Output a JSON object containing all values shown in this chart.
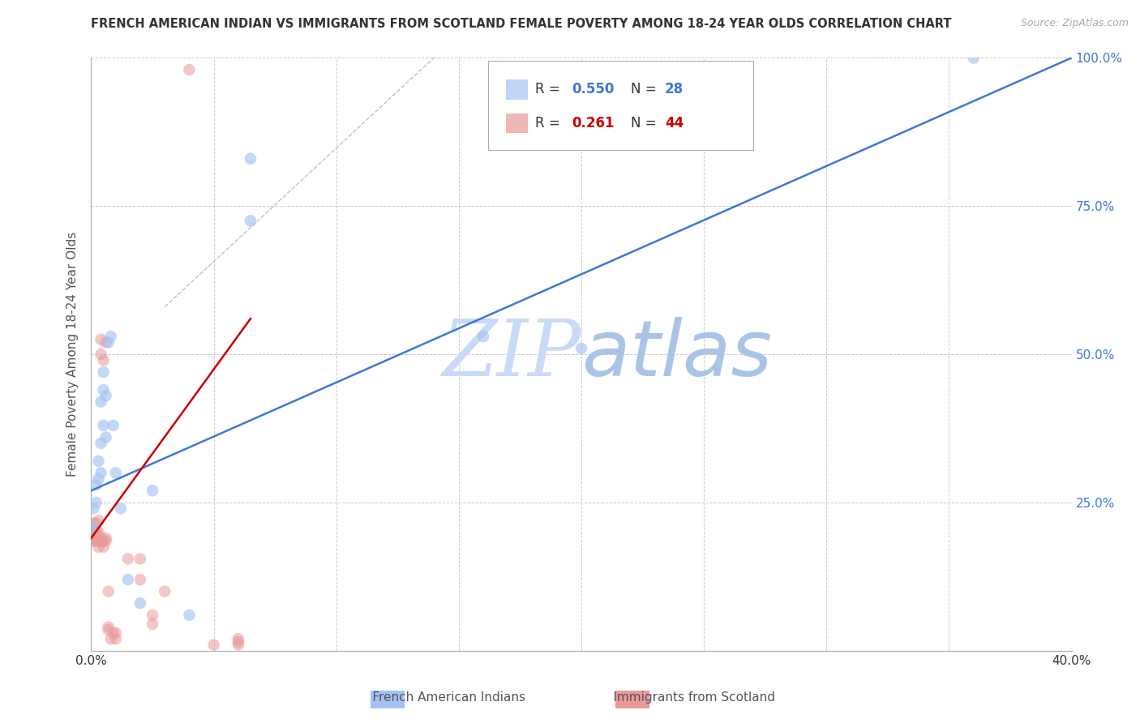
{
  "title": "FRENCH AMERICAN INDIAN VS IMMIGRANTS FROM SCOTLAND FEMALE POVERTY AMONG 18-24 YEAR OLDS CORRELATION CHART",
  "source": "Source: ZipAtlas.com",
  "ylabel": "Female Poverty Among 18-24 Year Olds",
  "xlim": [
    0.0,
    0.4
  ],
  "ylim": [
    0.0,
    1.0
  ],
  "xticks": [
    0.0,
    0.05,
    0.1,
    0.15,
    0.2,
    0.25,
    0.3,
    0.35,
    0.4
  ],
  "xticklabels": [
    "0.0%",
    "",
    "",
    "",
    "",
    "",
    "",
    "",
    "40.0%"
  ],
  "ytick_positions": [
    0.0,
    0.25,
    0.5,
    0.75,
    1.0
  ],
  "yticklabels_right": [
    "",
    "25.0%",
    "50.0%",
    "75.0%",
    "100.0%"
  ],
  "blue_color": "#a4c2f4",
  "pink_color": "#ea9999",
  "blue_line_color": "#3c78d8",
  "pink_line_color": "#cc0000",
  "grid_color": "#cccccc",
  "watermark_color": "#c9daf8",
  "legend_R_blue": "0.550",
  "legend_N_blue": "28",
  "legend_R_pink": "0.261",
  "legend_N_pink": "44",
  "blue_scatter_x": [
    0.001,
    0.001,
    0.002,
    0.002,
    0.003,
    0.003,
    0.004,
    0.004,
    0.004,
    0.005,
    0.005,
    0.005,
    0.006,
    0.006,
    0.007,
    0.008,
    0.009,
    0.01,
    0.012,
    0.015,
    0.02,
    0.025,
    0.04,
    0.065,
    0.065,
    0.16,
    0.2,
    0.36
  ],
  "blue_scatter_y": [
    0.21,
    0.24,
    0.25,
    0.28,
    0.29,
    0.32,
    0.3,
    0.35,
    0.42,
    0.38,
    0.44,
    0.47,
    0.36,
    0.43,
    0.52,
    0.53,
    0.38,
    0.3,
    0.24,
    0.12,
    0.08,
    0.27,
    0.06,
    0.83,
    0.725,
    0.53,
    0.51,
    1.0
  ],
  "pink_scatter_x": [
    0.001,
    0.001,
    0.001,
    0.001,
    0.001,
    0.001,
    0.002,
    0.002,
    0.002,
    0.002,
    0.002,
    0.003,
    0.003,
    0.003,
    0.003,
    0.003,
    0.004,
    0.004,
    0.004,
    0.004,
    0.005,
    0.005,
    0.005,
    0.006,
    0.006,
    0.006,
    0.007,
    0.007,
    0.007,
    0.008,
    0.009,
    0.01,
    0.01,
    0.015,
    0.02,
    0.02,
    0.025,
    0.025,
    0.03,
    0.04,
    0.05,
    0.06,
    0.06,
    0.06
  ],
  "pink_scatter_y": [
    0.185,
    0.19,
    0.195,
    0.2,
    0.21,
    0.215,
    0.185,
    0.19,
    0.2,
    0.205,
    0.215,
    0.175,
    0.185,
    0.19,
    0.2,
    0.22,
    0.185,
    0.19,
    0.5,
    0.525,
    0.175,
    0.185,
    0.49,
    0.185,
    0.19,
    0.52,
    0.035,
    0.04,
    0.1,
    0.02,
    0.03,
    0.02,
    0.03,
    0.155,
    0.155,
    0.12,
    0.045,
    0.06,
    0.1,
    0.98,
    0.01,
    0.01,
    0.015,
    0.02
  ],
  "blue_line_x0": 0.0,
  "blue_line_y0": 0.27,
  "blue_line_x1": 0.4,
  "blue_line_y1": 1.0,
  "pink_line_x0": 0.0,
  "pink_line_y0": 0.19,
  "pink_line_x1": 0.065,
  "pink_line_y1": 0.56,
  "dash_line_x0": 0.03,
  "dash_line_y0": 0.58,
  "dash_line_x1": 0.145,
  "dash_line_y1": 1.02
}
